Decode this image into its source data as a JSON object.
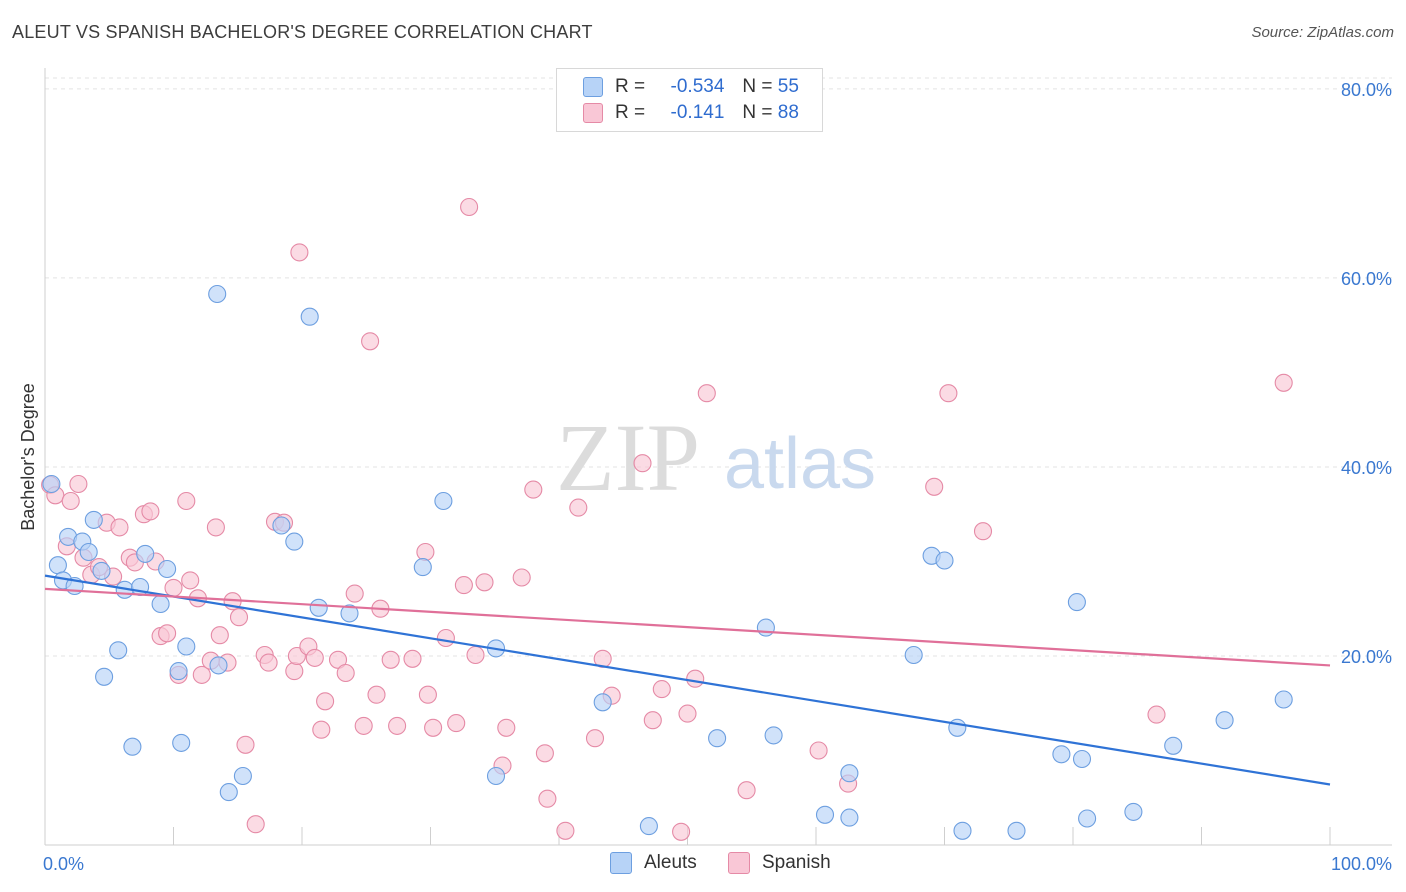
{
  "title": "ALEUT VS SPANISH BACHELOR'S DEGREE CORRELATION CHART",
  "source": "Source: ZipAtlas.com",
  "watermark": {
    "zip": "ZIP",
    "atlas": "atlas"
  },
  "legend_top": {
    "aleuts": {
      "r_label": "R =",
      "r_value": "-0.534",
      "n_label": "N =",
      "n_value": "55"
    },
    "spanish": {
      "r_label": "R =",
      "r_value": "-0.141",
      "n_label": "N =",
      "n_value": "88"
    }
  },
  "legend_bottom": {
    "aleuts": "Aleuts",
    "spanish": "Spanish"
  },
  "colors": {
    "aleuts_fill": "#b7d3f7",
    "aleuts_stroke": "#6d9fe0",
    "aleuts_line": "#2f73d6",
    "spanish_fill": "#f9c7d6",
    "spanish_stroke": "#e58aa6",
    "spanish_line": "#e07099",
    "axis_label": "#3a78d0"
  },
  "chart_data": {
    "type": "scatter",
    "title": "ALEUT VS SPANISH BACHELOR'S DEGREE CORRELATION CHART",
    "xlabel": "",
    "ylabel": "Bachelor's Degree",
    "xlim": [
      0,
      100
    ],
    "ylim": [
      0,
      82
    ],
    "x_tick_labels": {
      "min": "0.0%",
      "max": "100.0%"
    },
    "y_ticks": [
      20,
      40,
      60,
      80
    ],
    "y_tick_labels": [
      "20.0%",
      "40.0%",
      "60.0%",
      "80.0%"
    ],
    "series": [
      {
        "name": "Aleuts",
        "r": -0.534,
        "n": 55,
        "trend": {
          "x": [
            0,
            100
          ],
          "y": [
            28.5,
            6.4
          ]
        },
        "points": [
          [
            0.5,
            38.2
          ],
          [
            1.0,
            29.6
          ],
          [
            1.4,
            28.0
          ],
          [
            1.8,
            32.6
          ],
          [
            2.3,
            27.4
          ],
          [
            2.9,
            32.1
          ],
          [
            3.4,
            31.0
          ],
          [
            3.8,
            34.4
          ],
          [
            4.4,
            29.0
          ],
          [
            4.6,
            17.8
          ],
          [
            5.7,
            20.6
          ],
          [
            6.2,
            27.0
          ],
          [
            6.8,
            10.4
          ],
          [
            7.4,
            27.3
          ],
          [
            7.8,
            30.8
          ],
          [
            9.0,
            25.5
          ],
          [
            9.5,
            29.2
          ],
          [
            10.4,
            18.4
          ],
          [
            10.6,
            10.8
          ],
          [
            11.0,
            21.0
          ],
          [
            13.4,
            58.3
          ],
          [
            13.5,
            19.0
          ],
          [
            14.3,
            5.6
          ],
          [
            15.4,
            7.3
          ],
          [
            18.4,
            33.8
          ],
          [
            19.4,
            32.1
          ],
          [
            20.6,
            55.9
          ],
          [
            21.3,
            25.1
          ],
          [
            23.7,
            24.5
          ],
          [
            29.4,
            29.4
          ],
          [
            31.0,
            36.4
          ],
          [
            35.1,
            20.8
          ],
          [
            35.1,
            7.3
          ],
          [
            43.4,
            15.1
          ],
          [
            47.0,
            2.0
          ],
          [
            52.3,
            11.3
          ],
          [
            56.1,
            23.0
          ],
          [
            56.7,
            11.6
          ],
          [
            60.7,
            3.2
          ],
          [
            62.6,
            2.9
          ],
          [
            62.6,
            7.6
          ],
          [
            67.6,
            20.1
          ],
          [
            69.0,
            30.6
          ],
          [
            70.0,
            30.1
          ],
          [
            71.0,
            12.4
          ],
          [
            71.4,
            1.5
          ],
          [
            75.6,
            1.5
          ],
          [
            79.1,
            9.6
          ],
          [
            80.3,
            25.7
          ],
          [
            80.7,
            9.1
          ],
          [
            81.1,
            2.8
          ],
          [
            84.7,
            3.5
          ],
          [
            87.8,
            10.5
          ],
          [
            91.8,
            13.2
          ],
          [
            96.4,
            15.4
          ]
        ]
      },
      {
        "name": "Spanish",
        "r": -0.141,
        "n": 88,
        "trend": {
          "x": [
            0,
            100
          ],
          "y": [
            27.1,
            19.0
          ]
        },
        "points": [
          [
            0.4,
            38.1
          ],
          [
            0.8,
            37.0
          ],
          [
            1.7,
            31.6
          ],
          [
            2.0,
            36.4
          ],
          [
            2.6,
            38.2
          ],
          [
            3.0,
            30.4
          ],
          [
            3.6,
            28.6
          ],
          [
            4.2,
            29.4
          ],
          [
            4.8,
            34.1
          ],
          [
            5.3,
            28.4
          ],
          [
            5.8,
            33.6
          ],
          [
            6.6,
            30.4
          ],
          [
            7.0,
            29.9
          ],
          [
            7.7,
            35.0
          ],
          [
            8.2,
            35.3
          ],
          [
            8.6,
            30.0
          ],
          [
            9.0,
            22.1
          ],
          [
            9.5,
            22.4
          ],
          [
            10.0,
            27.2
          ],
          [
            10.4,
            18.0
          ],
          [
            11.0,
            36.4
          ],
          [
            11.3,
            28.0
          ],
          [
            11.9,
            26.1
          ],
          [
            12.2,
            18.0
          ],
          [
            12.9,
            19.5
          ],
          [
            13.3,
            33.6
          ],
          [
            13.6,
            22.2
          ],
          [
            14.2,
            19.3
          ],
          [
            14.6,
            25.8
          ],
          [
            15.1,
            24.1
          ],
          [
            15.6,
            10.6
          ],
          [
            16.4,
            2.2
          ],
          [
            17.1,
            20.1
          ],
          [
            17.4,
            19.3
          ],
          [
            17.9,
            34.2
          ],
          [
            18.6,
            34.1
          ],
          [
            19.4,
            18.4
          ],
          [
            19.6,
            20.0
          ],
          [
            19.8,
            62.7
          ],
          [
            20.5,
            21.0
          ],
          [
            21.0,
            19.8
          ],
          [
            21.5,
            12.2
          ],
          [
            21.8,
            15.2
          ],
          [
            22.8,
            19.6
          ],
          [
            23.4,
            18.2
          ],
          [
            24.1,
            26.6
          ],
          [
            24.8,
            12.6
          ],
          [
            25.3,
            53.3
          ],
          [
            25.8,
            15.9
          ],
          [
            26.1,
            25.0
          ],
          [
            26.9,
            19.6
          ],
          [
            27.4,
            12.6
          ],
          [
            28.6,
            19.7
          ],
          [
            29.6,
            31.0
          ],
          [
            29.8,
            15.9
          ],
          [
            30.2,
            12.4
          ],
          [
            31.2,
            21.9
          ],
          [
            32.0,
            12.9
          ],
          [
            32.6,
            27.5
          ],
          [
            33.0,
            67.5
          ],
          [
            33.5,
            20.1
          ],
          [
            34.2,
            27.8
          ],
          [
            35.6,
            8.4
          ],
          [
            35.9,
            12.4
          ],
          [
            37.1,
            28.3
          ],
          [
            38.0,
            37.6
          ],
          [
            38.9,
            9.7
          ],
          [
            39.1,
            4.9
          ],
          [
            40.5,
            1.5
          ],
          [
            41.5,
            35.7
          ],
          [
            42.8,
            11.3
          ],
          [
            43.4,
            19.7
          ],
          [
            44.1,
            15.8
          ],
          [
            46.5,
            40.4
          ],
          [
            47.3,
            13.2
          ],
          [
            48.0,
            16.5
          ],
          [
            49.5,
            1.4
          ],
          [
            50.0,
            13.9
          ],
          [
            50.6,
            17.6
          ],
          [
            51.5,
            47.8
          ],
          [
            54.6,
            5.8
          ],
          [
            60.2,
            10.0
          ],
          [
            62.5,
            6.5
          ],
          [
            69.2,
            37.9
          ],
          [
            70.3,
            47.8
          ],
          [
            73.0,
            33.2
          ],
          [
            86.5,
            13.8
          ],
          [
            96.4,
            48.9
          ]
        ]
      }
    ]
  }
}
